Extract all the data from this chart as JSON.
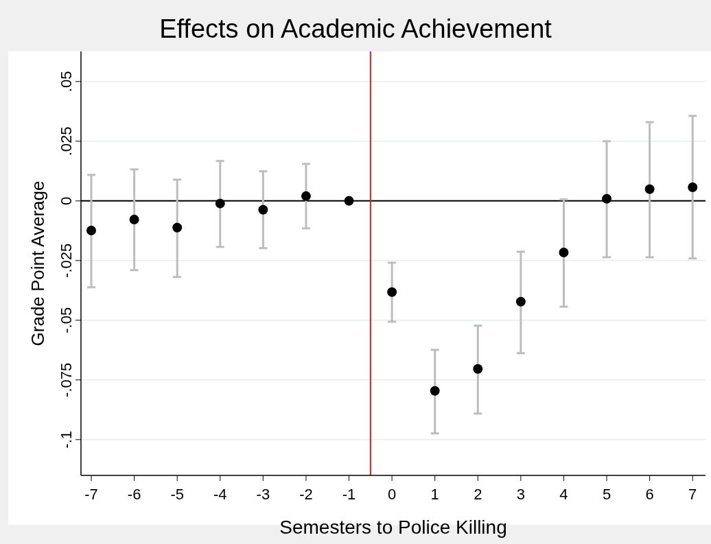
{
  "chart_data": {
    "type": "scatter",
    "title": "Effects on Academic Achievement",
    "xlabel": "Semesters to Police Killing",
    "ylabel": "Grade Point Average",
    "x": [
      -7,
      -6,
      -5,
      -4,
      -3,
      -2,
      -1,
      0,
      1,
      2,
      3,
      4,
      5,
      6,
      7
    ],
    "series": [
      {
        "color": "#000000",
        "values": [
          -0.0124,
          -0.0078,
          -0.0112,
          -0.0011,
          -0.0037,
          0.002,
          0,
          -0.0382,
          -0.0796,
          -0.0704,
          -0.0422,
          -0.0216,
          0.0009,
          0.0049,
          0.0057
        ],
        "errors": [
          [
            -0.0362,
            0.0109
          ],
          [
            -0.029,
            0.0132
          ],
          [
            -0.0319,
            0.0089
          ],
          [
            -0.0193,
            0.0167
          ],
          [
            -0.0198,
            0.0124
          ],
          [
            -0.0115,
            0.0155
          ],
          null,
          [
            -0.0506,
            -0.0259
          ],
          [
            -0.0974,
            -0.0624
          ],
          [
            -0.0891,
            -0.0523
          ],
          [
            -0.0638,
            -0.0213
          ],
          [
            -0.0443,
            0.0006
          ],
          [
            -0.0236,
            0.025
          ],
          [
            -0.0236,
            0.033
          ],
          [
            -0.0241,
            0.0356
          ]
        ]
      }
    ],
    "xlim": [
      -7.24,
      7.3
    ],
    "ylim": [
      -0.115,
      0.0626
    ],
    "xticks": [
      -7,
      -6,
      -5,
      -4,
      -3,
      -2,
      -1,
      0,
      1,
      2,
      3,
      4,
      5,
      6,
      7
    ],
    "yticks": [
      {
        "value": 0.05,
        "label": ".05"
      },
      {
        "value": 0.025,
        "label": ".025"
      },
      0,
      {
        "value": -0.025,
        "label": "-.025"
      },
      {
        "value": -0.05,
        "label": "-.05"
      },
      {
        "value": -0.075,
        "label": "-.075"
      },
      {
        "value": -0.1,
        "label": "-.1"
      }
    ],
    "ref_lines": [
      {
        "axis": "y",
        "value": 0,
        "color": "#000000"
      },
      {
        "axis": "x",
        "value": -0.5,
        "color": "#d62020"
      }
    ],
    "grid": "y",
    "marker": "circle"
  }
}
